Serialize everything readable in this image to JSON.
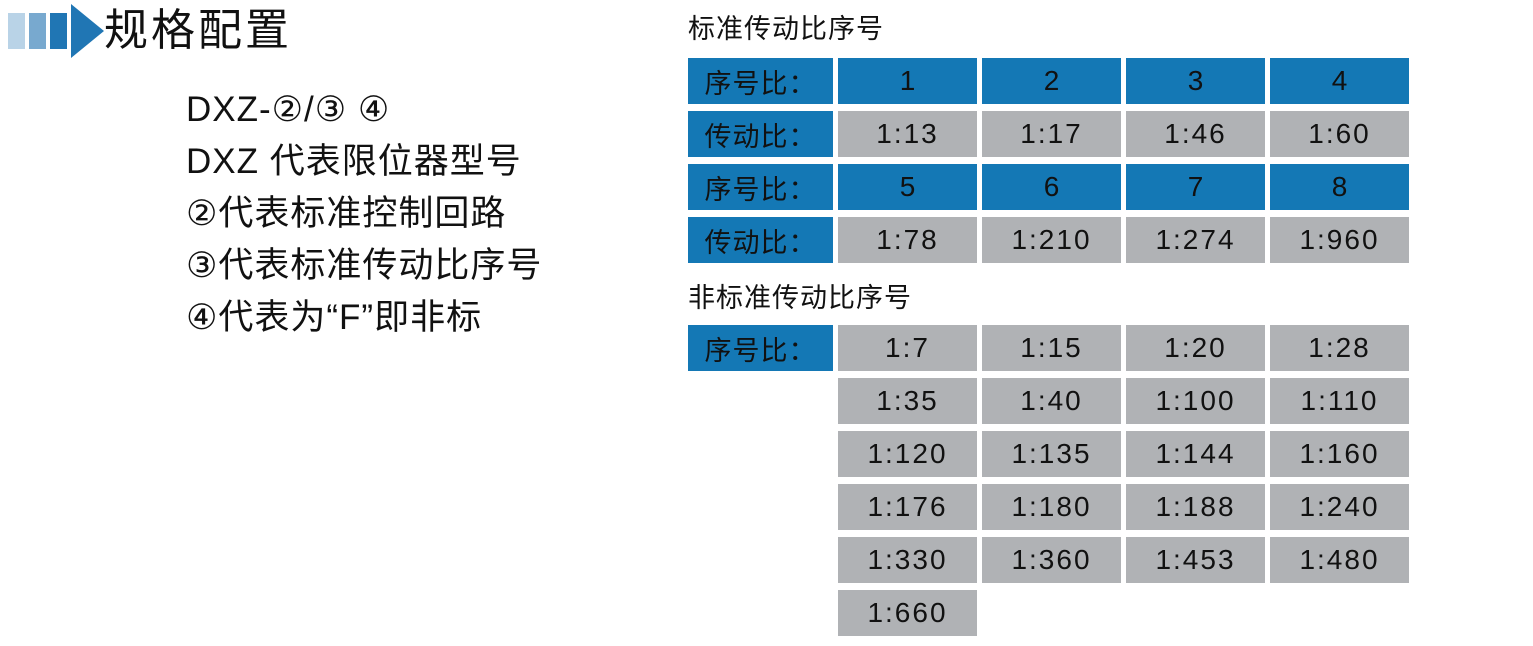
{
  "header": {
    "title": "规格配置"
  },
  "left_block": {
    "lines": [
      "DXZ-②/③ ④",
      "DXZ 代表限位器型号",
      "②代表标准控制回路",
      "③代表标准传动比序号",
      "④代表为“F”即非标"
    ]
  },
  "standard_table": {
    "title": "标准传动比序号",
    "rows": [
      {
        "label": "序号比：",
        "cells": [
          "1",
          "2",
          "3",
          "4"
        ]
      },
      {
        "label": "传动比：",
        "cells": [
          "1:13",
          "1:17",
          "1:46",
          "1:60"
        ]
      },
      {
        "label": "序号比：",
        "cells": [
          "5",
          "6",
          "7",
          "8"
        ]
      },
      {
        "label": "传动比：",
        "cells": [
          "1:78",
          "1:210",
          "1:274",
          "1:960"
        ]
      }
    ]
  },
  "nonstandard_table": {
    "title": "非标准传动比序号",
    "label": "序号比：",
    "rows": [
      [
        "1:7",
        "1:15",
        "1:20",
        "1:28"
      ],
      [
        "1:35",
        "1:40",
        "1:100",
        "1:110"
      ],
      [
        "1:120",
        "1:135",
        "1:144",
        "1:160"
      ],
      [
        "1:176",
        "1:180",
        "1:188",
        "1:240"
      ],
      [
        "1:330",
        "1:360",
        "1:453",
        "1:480"
      ],
      [
        "1:660"
      ]
    ]
  },
  "colors": {
    "accent_blue": "#1478b5",
    "cell_gray": "#b0b2b5",
    "icon_light_blue": "#b9d3e7",
    "icon_mid_blue": "#78a9cf",
    "icon_dark_blue": "#2076b4",
    "text_black": "#111111"
  }
}
